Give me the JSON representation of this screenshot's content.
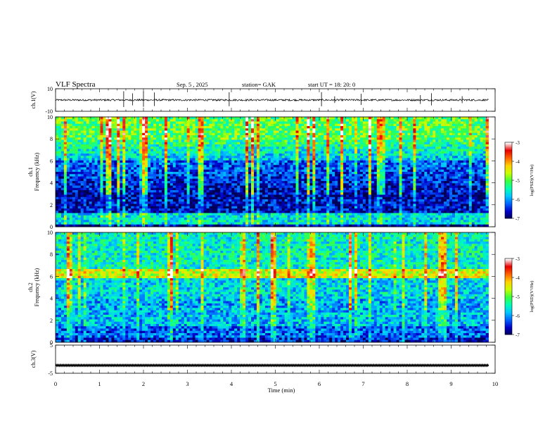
{
  "header": {
    "title": "VLF  Spectra",
    "date": "Sep. 5  , 2025",
    "station": "station= GAK",
    "start_ut": "start  UT  =    18: 20: 0"
  },
  "colors": {
    "colormap": [
      "#000050",
      "#0000c8",
      "#0064ff",
      "#00c8ff",
      "#00ffb4",
      "#3cff3c",
      "#c8ff00",
      "#ffd200",
      "#ff6400",
      "#e60000",
      "#ffffff"
    ]
  },
  "chart_data": [
    {
      "type": "line",
      "name": "ch1-waveform",
      "ylabel": "ch.1(V)",
      "ylim": [
        -10,
        10
      ],
      "y_ticks": [
        "10",
        "-10"
      ],
      "xlim": [
        0,
        10
      ],
      "baseline": 0,
      "spikes": [
        1.55,
        1.75,
        2.0,
        2.25,
        3.95,
        6.05,
        6.35,
        6.95,
        8.3,
        8.55,
        9.25
      ]
    },
    {
      "type": "heatmap",
      "name": "ch1-spectrogram",
      "ylabel": "ch.1\nFrequency  (kHz)",
      "ylim": [
        0,
        10
      ],
      "y_ticks": [
        "0",
        "2",
        "4",
        "6",
        "8",
        "10"
      ],
      "xlim": [
        0,
        10
      ],
      "colorbar": {
        "label": "log(PSD)(V²/Hz)",
        "range": [
          -7,
          -3
        ],
        "ticks": [
          "-3",
          "-4",
          "-5",
          "-6",
          "-7"
        ]
      }
    },
    {
      "type": "heatmap",
      "name": "ch2-spectrogram",
      "ylabel": "ch.2\nFrequency  (kHz)",
      "ylim": [
        0,
        10
      ],
      "y_ticks": [
        "0",
        "2",
        "4",
        "6",
        "8",
        "10"
      ],
      "xlim": [
        0,
        10
      ],
      "colorbar": {
        "label": "log(PSD)(V²/Hz)",
        "range": [
          -7,
          -3
        ],
        "ticks": [
          "-3",
          "-4",
          "-5",
          "-6",
          "-7"
        ]
      }
    },
    {
      "type": "line",
      "name": "ch3-waveform",
      "ylabel": "ch.3(V)",
      "ylim": [
        -5,
        5
      ],
      "y_ticks": [
        "5",
        "-5"
      ],
      "xlim": [
        0,
        10
      ],
      "baseline": -2.2
    }
  ],
  "x_axis": {
    "label": "Time  (min)",
    "ticks": [
      "0",
      "1",
      "2",
      "3",
      "4",
      "5",
      "6",
      "7",
      "8",
      "9",
      "10"
    ]
  }
}
